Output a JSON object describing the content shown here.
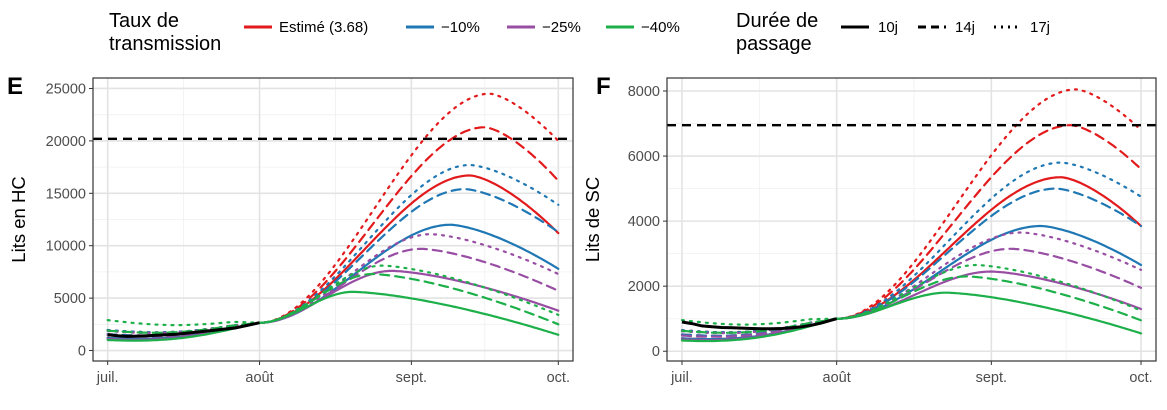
{
  "legend": {
    "rate": {
      "title": "Taux de\ntransmission",
      "items": [
        {
          "label": "Estimé (3.68)",
          "color": "#e31a1c"
        },
        {
          "label": "−10%",
          "color": "#1f78b4"
        },
        {
          "label": "−25%",
          "color": "#984ea3"
        },
        {
          "label": "−40%",
          "color": "#1db04a"
        }
      ]
    },
    "duration": {
      "title": "Durée de\npassage",
      "items": [
        {
          "label": "10j",
          "dash": "solid"
        },
        {
          "label": "14j",
          "dash": "dashed"
        },
        {
          "label": "17j",
          "dash": "dotted"
        }
      ]
    }
  },
  "chart_data": [
    {
      "panel": "E",
      "type": "line",
      "ylabel": "Lits en HC",
      "x_ticks": [
        "juil.",
        "août",
        "sept.",
        "oct."
      ],
      "x_tick_days": [
        0,
        31,
        62,
        92
      ],
      "xlim_days": [
        -3,
        95
      ],
      "ylim": [
        -1000,
        26000
      ],
      "y_ticks": [
        0,
        5000,
        10000,
        15000,
        20000,
        25000
      ],
      "threshold": 20200,
      "observed": {
        "x": [
          0,
          2,
          4,
          6,
          8,
          10,
          12,
          14,
          16,
          18,
          20,
          22,
          24,
          26,
          28,
          30,
          31
        ],
        "y": [
          1500,
          1400,
          1350,
          1380,
          1400,
          1450,
          1500,
          1560,
          1650,
          1750,
          1850,
          1950,
          2050,
          2150,
          2350,
          2550,
          2650
        ]
      },
      "series": [
        {
          "rate": "Estimé (3.68)",
          "duration": "10j",
          "x_peak": 74,
          "peak": 16700,
          "end": 11200
        },
        {
          "rate": "Estimé (3.68)",
          "duration": "14j",
          "x_peak": 77,
          "peak": 21300,
          "end": 16200
        },
        {
          "rate": "Estimé (3.68)",
          "duration": "17j",
          "x_peak": 78,
          "peak": 24500,
          "end": 20000
        },
        {
          "rate": "−10%",
          "duration": "10j",
          "x_peak": 70,
          "peak": 12000,
          "end": 7800
        },
        {
          "rate": "−10%",
          "duration": "14j",
          "x_peak": 73,
          "peak": 15400,
          "end": 11300
        },
        {
          "rate": "−10%",
          "duration": "17j",
          "x_peak": 74,
          "peak": 17700,
          "end": 13900
        },
        {
          "rate": "−25%",
          "duration": "10j",
          "x_peak": 58,
          "peak": 7600,
          "end": 3800
        },
        {
          "rate": "−25%",
          "duration": "14j",
          "x_peak": 64,
          "peak": 9700,
          "end": 5700
        },
        {
          "rate": "−25%",
          "duration": "17j",
          "x_peak": 66,
          "peak": 11100,
          "end": 7300
        },
        {
          "rate": "−40%",
          "duration": "10j",
          "x_peak": 50,
          "peak": 5600,
          "end": 1500
        },
        {
          "rate": "−40%",
          "duration": "14j",
          "x_peak": 54,
          "peak": 7300,
          "end": 2500
        },
        {
          "rate": "−40%",
          "duration": "17j",
          "x_peak": 56,
          "peak": 8100,
          "end": 3400
        }
      ]
    },
    {
      "panel": "F",
      "type": "line",
      "ylabel": "Lits de SC",
      "x_ticks": [
        "juil.",
        "août",
        "sept.",
        "oct."
      ],
      "x_tick_days": [
        0,
        31,
        62,
        92
      ],
      "xlim_days": [
        -3,
        95
      ],
      "ylim": [
        -300,
        8400
      ],
      "y_ticks": [
        0,
        2000,
        4000,
        6000,
        8000
      ],
      "threshold": 6950,
      "observed": {
        "x": [
          0,
          2,
          4,
          6,
          8,
          10,
          12,
          14,
          16,
          18,
          20,
          22,
          24,
          26,
          28,
          30,
          31
        ],
        "y": [
          900,
          850,
          780,
          750,
          730,
          720,
          710,
          700,
          690,
          690,
          700,
          720,
          750,
          800,
          870,
          960,
          1000
        ]
      },
      "series": [
        {
          "rate": "Estimé (3.68)",
          "duration": "10j",
          "x_peak": 76,
          "peak": 5350,
          "end": 3850
        },
        {
          "rate": "Estimé (3.68)",
          "duration": "14j",
          "x_peak": 78,
          "peak": 6950,
          "end": 5600
        },
        {
          "rate": "Estimé (3.68)",
          "duration": "17j",
          "x_peak": 79,
          "peak": 8050,
          "end": 6800
        },
        {
          "rate": "−10%",
          "duration": "10j",
          "x_peak": 72,
          "peak": 3850,
          "end": 2650
        },
        {
          "rate": "−10%",
          "duration": "14j",
          "x_peak": 75,
          "peak": 5000,
          "end": 3850
        },
        {
          "rate": "−10%",
          "duration": "17j",
          "x_peak": 76,
          "peak": 5800,
          "end": 4750
        },
        {
          "rate": "−25%",
          "duration": "10j",
          "x_peak": 62,
          "peak": 2450,
          "end": 1300
        },
        {
          "rate": "−25%",
          "duration": "14j",
          "x_peak": 66,
          "peak": 3150,
          "end": 1950
        },
        {
          "rate": "−25%",
          "duration": "17j",
          "x_peak": 68,
          "peak": 3650,
          "end": 2500
        },
        {
          "rate": "−40%",
          "duration": "10j",
          "x_peak": 53,
          "peak": 1800,
          "end": 550
        },
        {
          "rate": "−40%",
          "duration": "14j",
          "x_peak": 57,
          "peak": 2300,
          "end": 950
        },
        {
          "rate": "−40%",
          "duration": "17j",
          "x_peak": 59,
          "peak": 2650,
          "end": 1250
        }
      ]
    }
  ]
}
